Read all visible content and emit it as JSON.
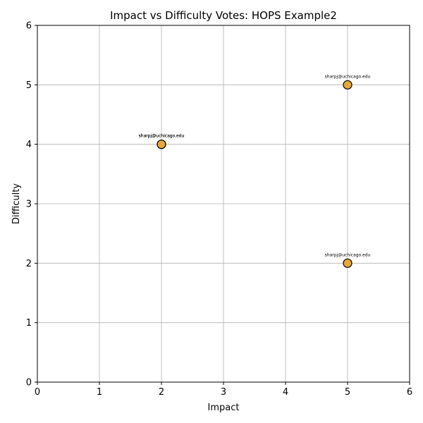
{
  "chart_data": {
    "type": "scatter",
    "title": "Impact vs Difficulty Votes: HOPS Example2",
    "xlabel": "Impact",
    "ylabel": "Difficulty",
    "xlim": [
      0,
      6
    ],
    "ylim": [
      0,
      6
    ],
    "xticks": [
      "0",
      "1",
      "2",
      "3",
      "4",
      "5",
      "6"
    ],
    "yticks": [
      "0",
      "1",
      "2",
      "3",
      "4",
      "5",
      "6"
    ],
    "grid": true,
    "marker_color": "#e8a838",
    "marker_edge_color": "#000000",
    "points": [
      {
        "x": 2,
        "y": 4,
        "label": "sharpj@uchicago.edu"
      },
      {
        "x": 2,
        "y": 4,
        "label": "sharpj@uchicago.edu"
      },
      {
        "x": 5,
        "y": 5,
        "label": "sharpj@uchicago.edu"
      },
      {
        "x": 5,
        "y": 2,
        "label": "sharpj@uchicago.edu"
      }
    ]
  }
}
